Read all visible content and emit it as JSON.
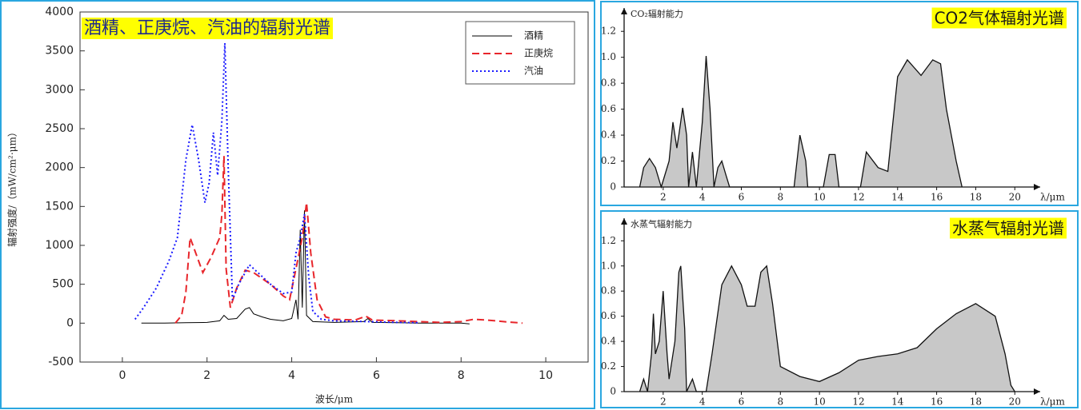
{
  "chart_data": [
    {
      "type": "line",
      "title": "酒精、正庚烷、汽油的辐射光谱",
      "xlabel": "波长/μm",
      "ylabel": "辐射强度/（mW/cm²·μm）",
      "xlim": [
        -1,
        11
      ],
      "ylim": [
        -500,
        4000
      ],
      "xticks": [
        0,
        2,
        4,
        6,
        8,
        10
      ],
      "yticks": [
        -500,
        0,
        500,
        1000,
        1500,
        2000,
        2500,
        3000,
        3500,
        4000
      ],
      "legend": "upper right",
      "series": [
        {
          "name": "酒精",
          "color": "#000000",
          "linestyle": "solid",
          "x": [
            0.45,
            1,
            1.5,
            2,
            2.3,
            2.4,
            2.5,
            2.7,
            2.9,
            3.0,
            3.1,
            3.3,
            3.5,
            3.8,
            4.0,
            4.1,
            4.15,
            4.2,
            4.25,
            4.3,
            4.35,
            4.5,
            5,
            5.7,
            5.8,
            5.9,
            6.5,
            7,
            8,
            8.2
          ],
          "values": [
            0,
            0,
            5,
            10,
            30,
            100,
            50,
            60,
            180,
            200,
            120,
            80,
            50,
            30,
            60,
            300,
            50,
            1200,
            200,
            1450,
            100,
            20,
            10,
            20,
            60,
            10,
            5,
            0,
            0,
            -10
          ]
        },
        {
          "name": "正庚烷",
          "color": "#e8262b",
          "linestyle": "dashed",
          "x": [
            1.25,
            1.4,
            1.5,
            1.6,
            1.8,
            1.9,
            2.1,
            2.3,
            2.35,
            2.4,
            2.45,
            2.55,
            2.7,
            2.9,
            3.1,
            3.5,
            3.8,
            3.95,
            4.1,
            4.25,
            4.35,
            4.45,
            4.6,
            4.8,
            5,
            5.5,
            5.75,
            5.9,
            6.5,
            7,
            7.5,
            8,
            8.3,
            8.6,
            9,
            9.45
          ],
          "values": [
            0,
            100,
            400,
            1100,
            800,
            650,
            850,
            1100,
            1400,
            2150,
            700,
            200,
            450,
            680,
            650,
            500,
            350,
            300,
            700,
            1100,
            1550,
            900,
            300,
            80,
            50,
            40,
            90,
            40,
            30,
            20,
            10,
            20,
            50,
            40,
            20,
            0
          ]
        },
        {
          "name": "汽油",
          "color": "#1a1aff",
          "linestyle": "dotted",
          "x": [
            0.3,
            0.5,
            0.8,
            1.1,
            1.3,
            1.5,
            1.65,
            1.8,
            1.95,
            2.05,
            2.15,
            2.25,
            2.35,
            2.42,
            2.5,
            2.6,
            2.75,
            3.0,
            3.2,
            3.5,
            3.8,
            4.0,
            4.1,
            4.2,
            4.3,
            4.4,
            4.5,
            4.7,
            5,
            5.8,
            6.5,
            7
          ],
          "values": [
            50,
            200,
            450,
            800,
            1100,
            2100,
            2550,
            2100,
            1550,
            1800,
            2450,
            1900,
            2600,
            3600,
            2000,
            300,
            500,
            750,
            650,
            500,
            380,
            400,
            900,
            1100,
            1400,
            600,
            150,
            50,
            30,
            20,
            10,
            5
          ]
        }
      ]
    },
    {
      "type": "area",
      "title": "CO2气体辐射光谱",
      "xlabel": "λ/μm",
      "ylabel": "CO₂辐射能力",
      "xlim": [
        0,
        21.3
      ],
      "ylim": [
        0,
        1.38
      ],
      "xticks": [
        2,
        4,
        6,
        8,
        10,
        12,
        14,
        16,
        18,
        20
      ],
      "yticks": [
        0,
        0.2,
        0.4,
        0.6,
        0.8,
        {
          "value": 1,
          "label": "1.0"
        },
        1.2
      ],
      "color": "#c8c8c8",
      "x": [
        0.8,
        1.0,
        1.3,
        1.6,
        1.9,
        2.3,
        2.5,
        2.7,
        2.8,
        3.0,
        3.2,
        3.3,
        3.5,
        3.7,
        4.0,
        4.2,
        4.4,
        4.6,
        4.8,
        5.0,
        5.2,
        5.4,
        8.7,
        9.0,
        9.3,
        9.4,
        10.2,
        10.5,
        10.8,
        11,
        12.1,
        12.4,
        13,
        13.5,
        14,
        14.5,
        15.2,
        15.8,
        16.2,
        16.5,
        17,
        17.3
      ],
      "values": [
        0,
        0.15,
        0.22,
        0.15,
        0,
        0.2,
        0.5,
        0.3,
        0.4,
        0.61,
        0.4,
        0,
        0.27,
        0,
        0.5,
        1.01,
        0.6,
        0,
        0.15,
        0.2,
        0.1,
        0,
        0,
        0.4,
        0.2,
        0,
        0,
        0.25,
        0.25,
        0,
        0,
        0.27,
        0.15,
        0.12,
        0.85,
        0.98,
        0.86,
        0.98,
        0.95,
        0.6,
        0.2,
        0
      ]
    },
    {
      "type": "area",
      "title": "水蒸气辐射光谱",
      "xlabel": "λ/μm",
      "ylabel": "水蒸气辐射能力",
      "xlim": [
        0,
        21.3
      ],
      "ylim": [
        0,
        1.38
      ],
      "xticks": [
        2,
        4,
        6,
        8,
        10,
        12,
        14,
        16,
        18,
        20
      ],
      "yticks": [
        0,
        0.2,
        0.4,
        0.6,
        0.8,
        {
          "value": 1,
          "label": "1.0"
        },
        1.2
      ],
      "color": "#c8c8c8",
      "x": [
        0.8,
        1.0,
        1.2,
        1.4,
        1.5,
        1.6,
        1.8,
        2.0,
        2.2,
        2.3,
        2.6,
        2.8,
        2.9,
        3.1,
        3.2,
        3.5,
        3.7,
        4.2,
        4.5,
        5,
        5.5,
        6,
        6.3,
        6.7,
        7,
        7.3,
        7.6,
        8,
        9,
        10,
        11,
        12,
        13,
        14,
        15,
        16,
        17,
        18,
        19,
        19.5,
        19.8,
        20
      ],
      "values": [
        0,
        0.1,
        0,
        0.3,
        0.62,
        0.3,
        0.4,
        0.8,
        0.3,
        0.1,
        0.4,
        0.95,
        1.0,
        0.5,
        0,
        0.1,
        0,
        0,
        0.3,
        0.85,
        1.0,
        0.85,
        0.68,
        0.68,
        0.95,
        1.0,
        0.7,
        0.2,
        0.12,
        0.08,
        0.15,
        0.25,
        0.28,
        0.3,
        0.35,
        0.5,
        0.62,
        0.7,
        0.6,
        0.3,
        0.05,
        0
      ]
    }
  ]
}
